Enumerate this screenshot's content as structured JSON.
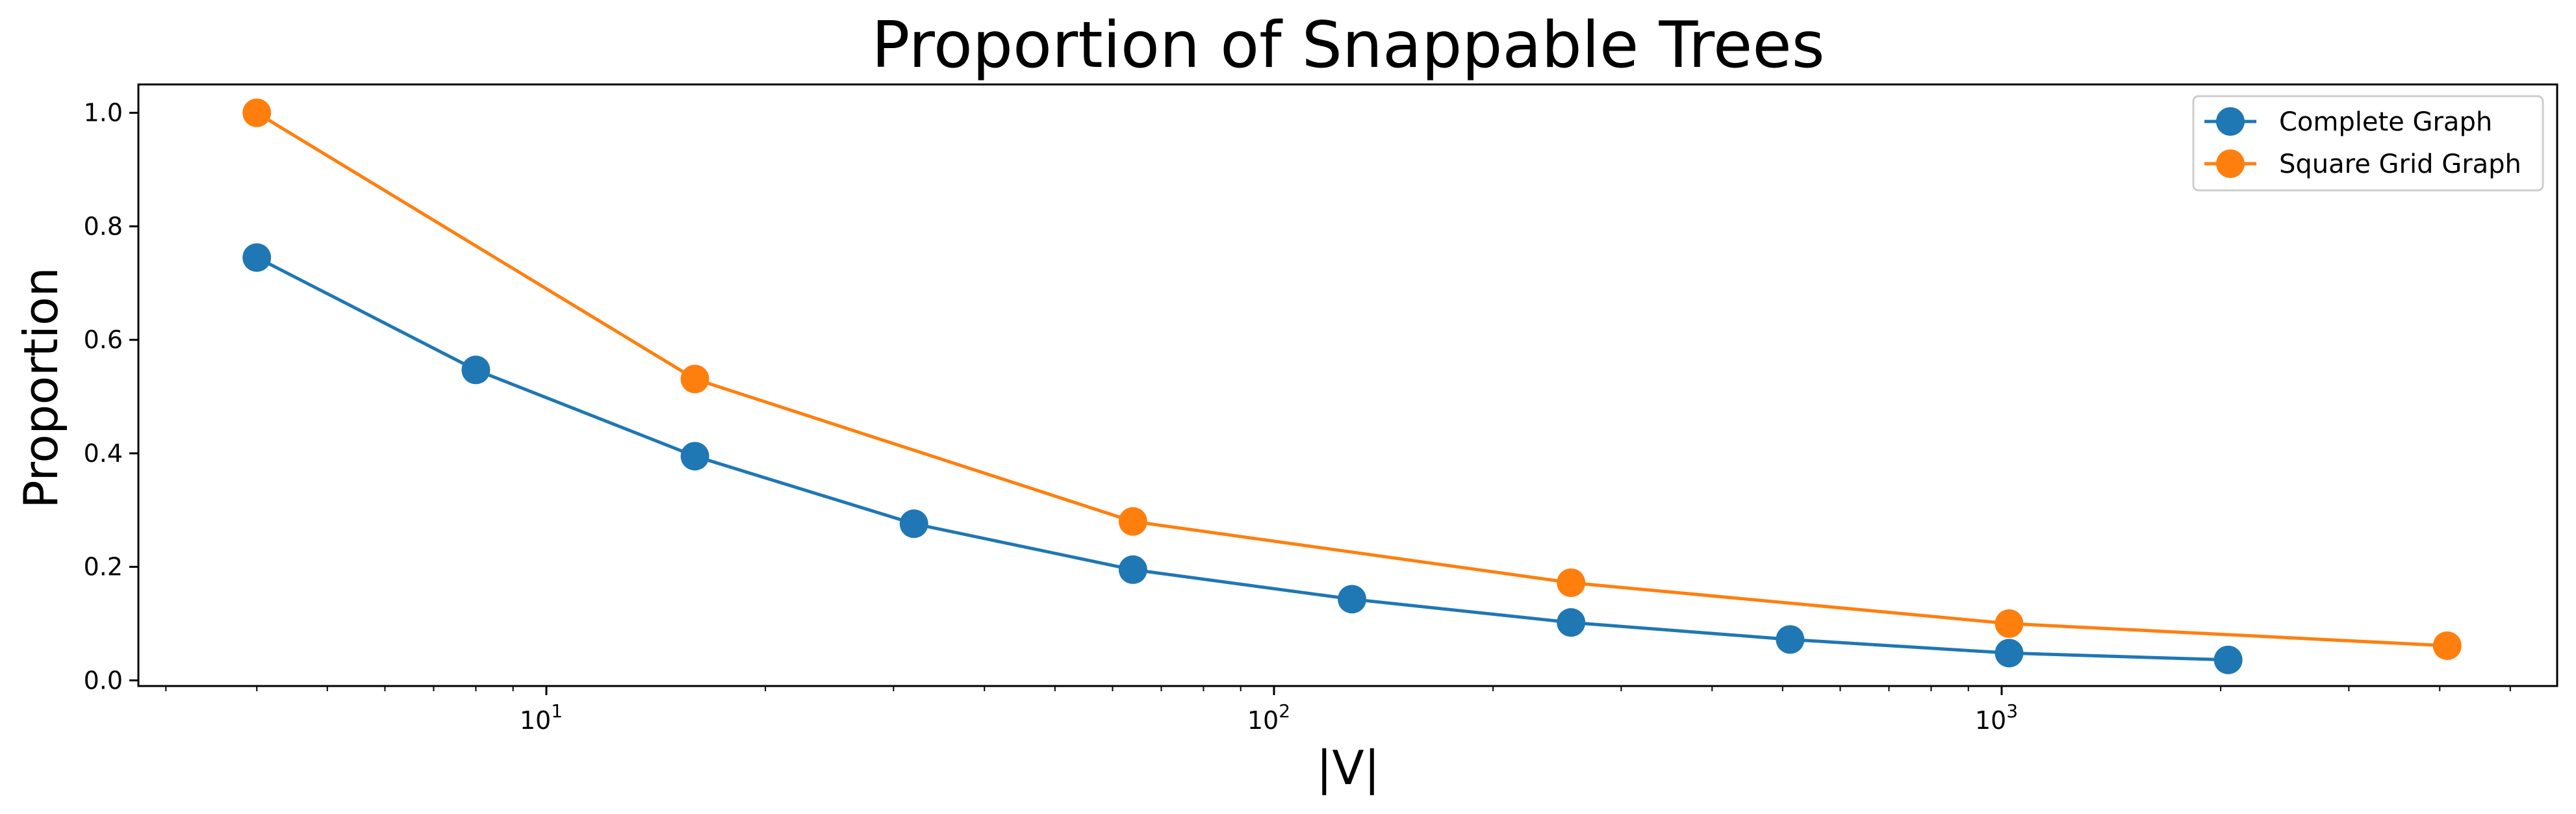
{
  "chart_data": {
    "type": "line",
    "title": "Proportion of Snappable Trees",
    "xlabel": "|V|",
    "ylabel": "Proportion",
    "xscale": "log",
    "xlim": [
      2.75,
      5800
    ],
    "ylim": [
      -0.01,
      1.05
    ],
    "x_ticks": [
      {
        "value": 10,
        "base": "10",
        "exp": "1"
      },
      {
        "value": 100,
        "base": "10",
        "exp": "2"
      },
      {
        "value": 1000,
        "base": "10",
        "exp": "3"
      }
    ],
    "y_ticks": [
      {
        "value": 0.0,
        "label": "0.0"
      },
      {
        "value": 0.2,
        "label": "0.2"
      },
      {
        "value": 0.4,
        "label": "0.4"
      },
      {
        "value": 0.6,
        "label": "0.6"
      },
      {
        "value": 0.8,
        "label": "0.8"
      },
      {
        "value": 1.0,
        "label": "1.0"
      }
    ],
    "grid": false,
    "legend_position": "top-right",
    "series": [
      {
        "name": "Complete Graph",
        "color": "#1f77b4",
        "marker": "circle",
        "x": [
          4,
          8,
          16,
          32,
          64,
          128,
          256,
          512,
          1024,
          2048
        ],
        "y": [
          0.745,
          0.547,
          0.395,
          0.276,
          0.195,
          0.143,
          0.102,
          0.072,
          0.048,
          0.036
        ]
      },
      {
        "name": "Square Grid Graph",
        "color": "#ff7f0e",
        "marker": "circle",
        "x": [
          4,
          16,
          64,
          256,
          1024,
          4096
        ],
        "y": [
          1.0,
          0.531,
          0.28,
          0.172,
          0.1,
          0.061
        ]
      }
    ]
  }
}
